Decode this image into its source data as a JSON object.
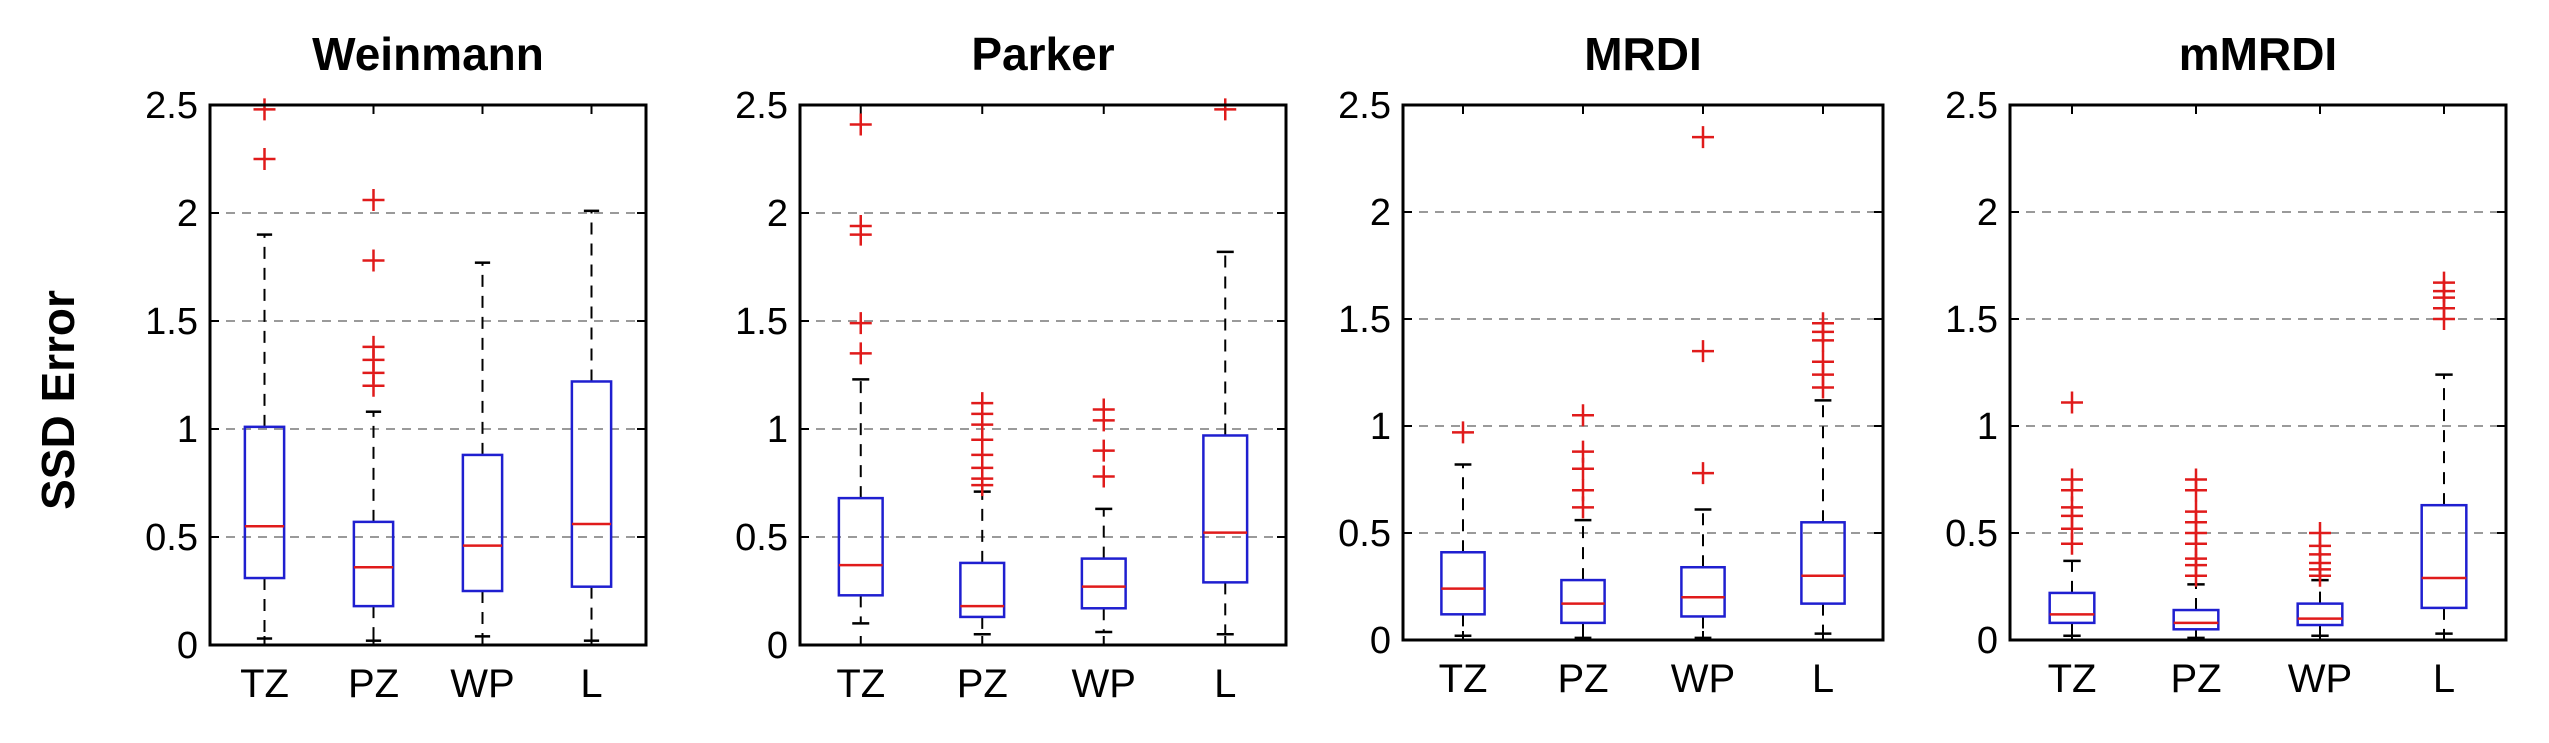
{
  "chart_data": {
    "type": "boxplot",
    "ylabel": "SSD Error",
    "ylim": [
      0,
      2.5
    ],
    "yticks": [
      0,
      0.5,
      1,
      1.5,
      2,
      2.5
    ],
    "ytick_labels": [
      "0",
      "0.5",
      "1",
      "1.5",
      "2",
      "2.5"
    ],
    "grid": "dashed-horizontal",
    "colors": {
      "box": "#1f1fd0",
      "median": "#e01b1b",
      "outlier": "#e01b1b",
      "whisker": "#000000",
      "grid": "#9a9a9a",
      "frame": "#000000"
    },
    "categories": [
      "TZ",
      "PZ",
      "WP",
      "L"
    ],
    "panels": [
      {
        "title": "Weinmann",
        "boxes": [
          {
            "category": "TZ",
            "q1": 0.31,
            "median": 0.55,
            "q3": 1.01,
            "whisker_low": 0.03,
            "whisker_high": 1.9,
            "outliers": [
              2.25,
              2.48
            ]
          },
          {
            "category": "PZ",
            "q1": 0.18,
            "median": 0.36,
            "q3": 0.57,
            "whisker_low": 0.02,
            "whisker_high": 1.08,
            "outliers": [
              1.2,
              1.26,
              1.32,
              1.38,
              1.78,
              2.06
            ]
          },
          {
            "category": "WP",
            "q1": 0.25,
            "median": 0.46,
            "q3": 0.88,
            "whisker_low": 0.04,
            "whisker_high": 1.77,
            "outliers": []
          },
          {
            "category": "L",
            "q1": 0.27,
            "median": 0.56,
            "q3": 1.22,
            "whisker_low": 0.02,
            "whisker_high": 2.01,
            "outliers": []
          }
        ]
      },
      {
        "title": "Parker",
        "boxes": [
          {
            "category": "TZ",
            "q1": 0.23,
            "median": 0.37,
            "q3": 0.68,
            "whisker_low": 0.1,
            "whisker_high": 1.23,
            "outliers": [
              1.35,
              1.49,
              1.9,
              1.94,
              2.41
            ]
          },
          {
            "category": "PZ",
            "q1": 0.13,
            "median": 0.18,
            "q3": 0.38,
            "whisker_low": 0.05,
            "whisker_high": 0.71,
            "outliers": [
              0.74,
              0.77,
              0.82,
              0.88,
              0.95,
              1.02,
              1.07,
              1.12
            ]
          },
          {
            "category": "WP",
            "q1": 0.17,
            "median": 0.27,
            "q3": 0.4,
            "whisker_low": 0.06,
            "whisker_high": 0.63,
            "outliers": [
              0.78,
              0.9,
              1.04,
              1.09
            ]
          },
          {
            "category": "L",
            "q1": 0.29,
            "median": 0.52,
            "q3": 0.97,
            "whisker_low": 0.05,
            "whisker_high": 1.82,
            "outliers": [
              2.48
            ]
          }
        ]
      },
      {
        "title": "MRDI",
        "boxes": [
          {
            "category": "TZ",
            "q1": 0.12,
            "median": 0.24,
            "q3": 0.41,
            "whisker_low": 0.02,
            "whisker_high": 0.82,
            "outliers": [
              0.97
            ]
          },
          {
            "category": "PZ",
            "q1": 0.08,
            "median": 0.17,
            "q3": 0.28,
            "whisker_low": 0.01,
            "whisker_high": 0.56,
            "outliers": [
              0.62,
              0.7,
              0.8,
              0.88,
              1.05
            ]
          },
          {
            "category": "WP",
            "q1": 0.11,
            "median": 0.2,
            "q3": 0.34,
            "whisker_low": 0.01,
            "whisker_high": 0.61,
            "outliers": [
              0.78,
              1.35,
              2.35
            ]
          },
          {
            "category": "L",
            "q1": 0.17,
            "median": 0.3,
            "q3": 0.55,
            "whisker_low": 0.03,
            "whisker_high": 1.12,
            "outliers": [
              1.18,
              1.24,
              1.3,
              1.4,
              1.44,
              1.48
            ]
          }
        ]
      },
      {
        "title": "mMRDI",
        "boxes": [
          {
            "category": "TZ",
            "q1": 0.08,
            "median": 0.12,
            "q3": 0.22,
            "whisker_low": 0.02,
            "whisker_high": 0.37,
            "outliers": [
              0.45,
              0.52,
              0.58,
              0.62,
              0.7,
              0.75,
              1.11
            ]
          },
          {
            "category": "PZ",
            "q1": 0.05,
            "median": 0.08,
            "q3": 0.14,
            "whisker_low": 0.01,
            "whisker_high": 0.26,
            "outliers": [
              0.3,
              0.35,
              0.38,
              0.45,
              0.5,
              0.55,
              0.6,
              0.7,
              0.75
            ]
          },
          {
            "category": "WP",
            "q1": 0.07,
            "median": 0.1,
            "q3": 0.17,
            "whisker_low": 0.02,
            "whisker_high": 0.28,
            "outliers": [
              0.3,
              0.33,
              0.36,
              0.4,
              0.44,
              0.5
            ]
          },
          {
            "category": "L",
            "q1": 0.15,
            "median": 0.29,
            "q3": 0.63,
            "whisker_low": 0.03,
            "whisker_high": 1.24,
            "outliers": [
              1.5,
              1.55,
              1.6,
              1.63,
              1.67
            ]
          }
        ]
      }
    ]
  }
}
